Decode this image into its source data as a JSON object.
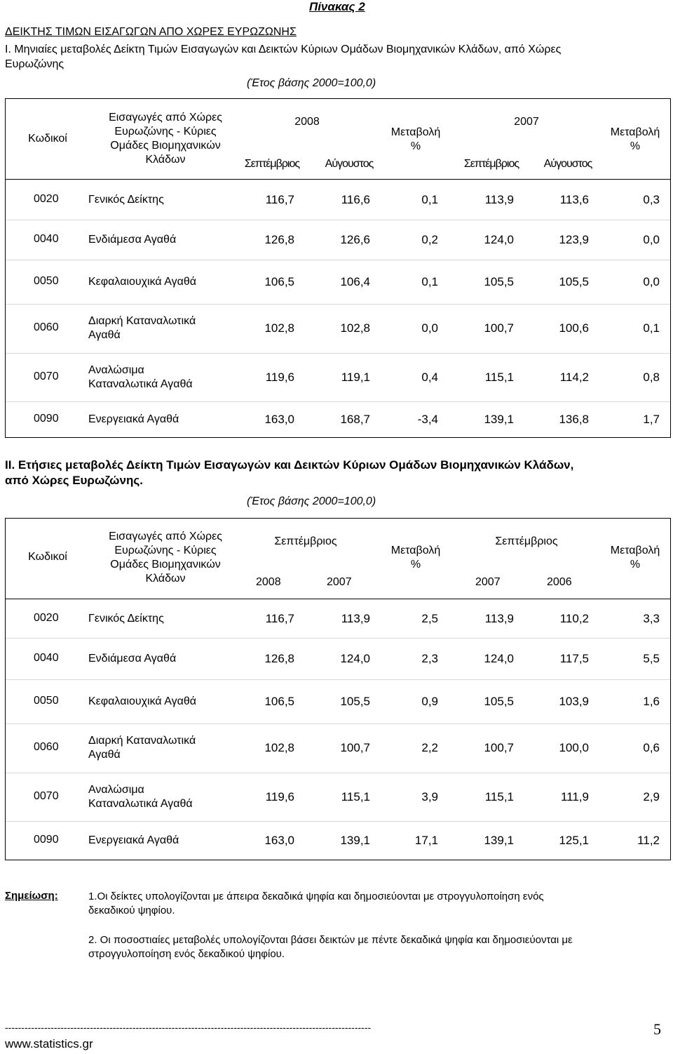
{
  "pinakas": "Πίνακας 2",
  "main_title": "ΔΕΙΚΤΗΣ ΤΙΜΩΝ ΕΙΣΑΓΩΓΩΝ ΑΠΟ ΧΩΡΕΣ ΕΥΡΩΖΩΝΗΣ",
  "section1": {
    "title_line1": "Ι. Μηνιαίες μεταβολές Δείκτη Τιμών Εισαγωγών και Δεικτών Κύριων Ομάδων Βιομηχανικών Κλάδων, από Χώρες",
    "title_line2": "Ευρωζώνης",
    "base_year": "(Έτος βάσης 2000=100,0)",
    "header": {
      "codes": "Κωδικοί",
      "desc_lines": [
        "Εισαγωγές από Χώρες",
        "Ευρωζώνης - Κύριες",
        "Ομάδες Βιομηχανικών",
        "Κλάδων"
      ],
      "year_a": "2008",
      "year_b": "2007",
      "month_a1": "Σεπτέμβριος",
      "month_a2": "Αύγουστος",
      "month_b1": "Σεπτέμβριος",
      "month_b2": "Αύγουστος",
      "change": "Μεταβολή",
      "pct": "%"
    },
    "rows": [
      {
        "code": "0020",
        "desc": [
          "Γενικός Δείκτης"
        ],
        "v": [
          "116,7",
          "116,6",
          "0,1",
          "113,9",
          "113,6",
          "0,3"
        ]
      },
      {
        "code": "0040",
        "desc": [
          "Ενδιάμεσα Αγαθά"
        ],
        "v": [
          "126,8",
          "126,6",
          "0,2",
          "124,0",
          "123,9",
          "0,0"
        ]
      },
      {
        "code": "0050",
        "desc": [
          "Κεφαλαιουχικά Αγαθά"
        ],
        "v": [
          "106,5",
          "106,4",
          "0,1",
          "105,5",
          "105,5",
          "0,0"
        ]
      },
      {
        "code": "0060",
        "desc": [
          "Διαρκή Καταναλωτικά",
          "Αγαθά"
        ],
        "v": [
          "102,8",
          "102,8",
          "0,0",
          "100,7",
          "100,6",
          "0,1"
        ]
      },
      {
        "code": "0070",
        "desc": [
          "Αναλώσιμα",
          "Καταναλωτικά Αγαθά"
        ],
        "v": [
          "119,6",
          "119,1",
          "0,4",
          "115,1",
          "114,2",
          "0,8"
        ]
      },
      {
        "code": "0090",
        "desc": [
          "Ενεργειακά Αγαθά"
        ],
        "v": [
          "163,0",
          "168,7",
          "-3,4",
          "139,1",
          "136,8",
          "1,7"
        ]
      }
    ]
  },
  "section2": {
    "title_line1": "ΙΙ. Ετήσιες μεταβολές Δείκτη Τιμών Εισαγωγών και Δεικτών Κύριων Ομάδων Βιομηχανικών Κλάδων,",
    "title_line2": "από Χώρες Ευρωζώνης.",
    "base_year": "(Έτος βάσης 2000=100,0)",
    "header": {
      "codes": "Κωδικοί",
      "desc_lines": [
        "Εισαγωγές από Χώρες",
        "Ευρωζώνης - Κύριες",
        "Ομάδες Βιομηχανικών",
        "Κλάδων"
      ],
      "month_a": "Σεπτέμβριος",
      "month_b": "Σεπτέμβριος",
      "year_a1": "2008",
      "year_a2": "2007",
      "year_b1": "2007",
      "year_b2": "2006",
      "change": "Μεταβολή",
      "pct": "%"
    },
    "rows": [
      {
        "code": "0020",
        "desc": [
          "Γενικός Δείκτης"
        ],
        "v": [
          "116,7",
          "113,9",
          "2,5",
          "113,9",
          "110,2",
          "3,3"
        ]
      },
      {
        "code": "0040",
        "desc": [
          "Ενδιάμεσα Αγαθά"
        ],
        "v": [
          "126,8",
          "124,0",
          "2,3",
          "124,0",
          "117,5",
          "5,5"
        ]
      },
      {
        "code": "0050",
        "desc": [
          "Κεφαλαιουχικά Αγαθά"
        ],
        "v": [
          "106,5",
          "105,5",
          "0,9",
          "105,5",
          "103,9",
          "1,6"
        ]
      },
      {
        "code": "0060",
        "desc": [
          "Διαρκή Καταναλωτικά",
          "Αγαθά"
        ],
        "v": [
          "102,8",
          "100,7",
          "2,2",
          "100,7",
          "100,0",
          "0,6"
        ]
      },
      {
        "code": "0070",
        "desc": [
          "Αναλώσιμα",
          "Καταναλωτικά Αγαθά"
        ],
        "v": [
          "119,6",
          "115,1",
          "3,9",
          "115,1",
          "111,9",
          "2,9"
        ]
      },
      {
        "code": "0090",
        "desc": [
          "Ενεργειακά Αγαθά"
        ],
        "v": [
          "163,0",
          "139,1",
          "17,1",
          "139,1",
          "125,1",
          "11,2"
        ]
      }
    ]
  },
  "notes": {
    "label": "Σημείωση:",
    "n1_line1": "1.Οι δείκτες υπολογίζονται με άπειρα δεκαδικά ψηφία και δημοσιεύονται με στρογγυλοποίηση  ενός",
    "n1_line2": "δεκαδικού ψηφίου.",
    "n2_line1": "2. Οι ποσοστιαίες μεταβολές υπολογίζονται βάσει δεικτών με πέντε δεκαδικά ψηφία και δημοσιεύονται με",
    "n2_line2": "στρογγυλοποίηση ενός δεκαδικού ψηφίου."
  },
  "footer": {
    "dashes": "----------------------------------------------------------------------------------------------------------------",
    "website": "www.statistics.gr",
    "page_number": "5"
  }
}
